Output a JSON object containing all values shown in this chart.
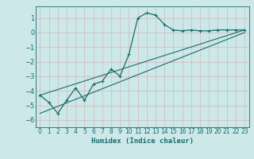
{
  "xlabel": "Humidex (Indice chaleur)",
  "background_color": "#cce8e8",
  "grid_color": "#b0d4d4",
  "line_color": "#1a6b6b",
  "xlim": [
    -0.5,
    23.5
  ],
  "ylim": [
    -6.5,
    1.8
  ],
  "yticks": [
    1,
    0,
    -1,
    -2,
    -3,
    -4,
    -5,
    -6
  ],
  "xticks": [
    0,
    1,
    2,
    3,
    4,
    5,
    6,
    7,
    8,
    9,
    10,
    11,
    12,
    13,
    14,
    15,
    16,
    17,
    18,
    19,
    20,
    21,
    22,
    23
  ],
  "series1_x": [
    0,
    1,
    2,
    3,
    4,
    5,
    6,
    7,
    8,
    9,
    10,
    11,
    12,
    13,
    14,
    15,
    16,
    17,
    18,
    19,
    20,
    21,
    22,
    23
  ],
  "series1_y": [
    -4.3,
    -4.8,
    -5.55,
    -4.65,
    -3.8,
    -4.65,
    -3.55,
    -3.35,
    -2.5,
    -3.0,
    -1.5,
    1.0,
    1.35,
    1.2,
    0.55,
    0.18,
    0.12,
    0.18,
    0.12,
    0.12,
    0.18,
    0.18,
    0.18,
    0.18
  ],
  "series2_x": [
    0,
    23
  ],
  "series2_y": [
    -4.3,
    0.18
  ],
  "series3_x": [
    0,
    23
  ],
  "series3_y": [
    -5.55,
    0.0
  ]
}
